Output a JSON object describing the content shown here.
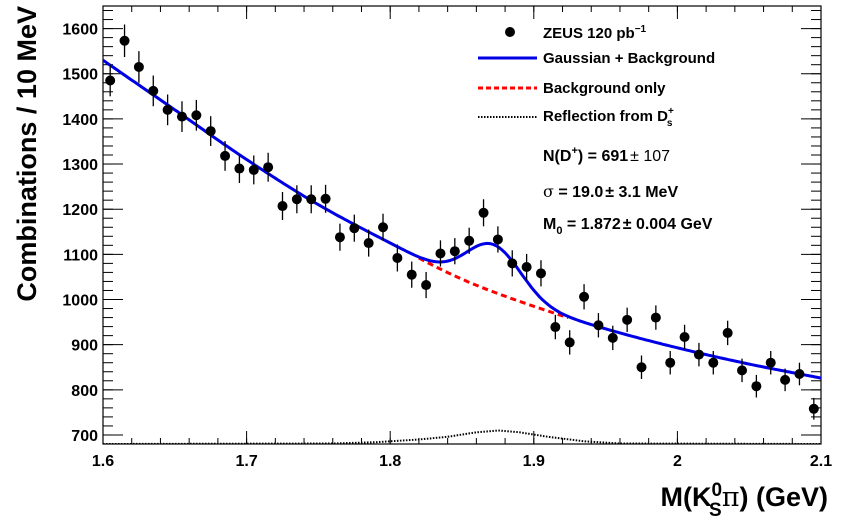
{
  "chart_data": {
    "type": "scatter",
    "xlabel_parts": {
      "main": "M(K",
      "sup": "0",
      "sub": "S",
      "pi": "π",
      "end": ") (GeV)"
    },
    "ylabel": "Combinations / 10 MeV",
    "xlim": [
      1.6,
      2.1
    ],
    "ylim": [
      680,
      1650
    ],
    "x_ticks": [
      "1.6",
      "1.7",
      "1.8",
      "1.9",
      "2",
      "2.1"
    ],
    "x_tick_values": [
      1.6,
      1.7,
      1.8,
      1.9,
      2.0,
      2.1
    ],
    "y_ticks": [
      "700",
      "800",
      "900",
      "1000",
      "1100",
      "1200",
      "1300",
      "1400",
      "1500",
      "1600"
    ],
    "y_tick_values": [
      700,
      800,
      900,
      1000,
      1100,
      1200,
      1300,
      1400,
      1500,
      1600
    ],
    "legend": {
      "data_label": "ZEUS 120 pb",
      "data_label_sup": "−1",
      "fit_label": "Gaussian + Background",
      "bkg_label": "Background only",
      "refl_label": "Reflection from D",
      "refl_sup": "+",
      "refl_sub": "s"
    },
    "results": {
      "n_text_a": "N(D",
      "n_sup": "+",
      "n_text_b": ") = 691",
      "n_err": "± 107",
      "sigma_sym": "σ",
      "sigma_text": " = 19.0",
      "sigma_err": "± 3.1 MeV",
      "m0_text": "M",
      "m0_sub": "0",
      "m0_val": " = 1.872",
      "m0_err": "± 0.004 GeV"
    },
    "colors": {
      "fit": "#0000e6",
      "background": "#ff0000",
      "reflection": "#000000",
      "data": "#000000"
    },
    "fit_params": {
      "background_x": [
        1.6,
        1.65,
        1.7,
        1.75,
        1.8,
        1.85,
        1.9,
        1.95,
        2.0,
        2.05,
        2.1
      ],
      "background_y": [
        1530,
        1420,
        1310,
        1210,
        1125,
        1045,
        985,
        935,
        893,
        857,
        826
      ],
      "gauss_amp": 105,
      "gauss_mean": 1.872,
      "gauss_sigma": 0.019,
      "background_only_range": [
        1.82,
        1.925
      ]
    },
    "reflection": {
      "x": [
        1.6,
        1.76,
        1.79,
        1.82,
        1.84,
        1.86,
        1.875,
        1.89,
        1.91,
        1.935,
        1.96,
        2.1
      ],
      "y": [
        680,
        681,
        684,
        690,
        696,
        706,
        710,
        706,
        696,
        686,
        681,
        680
      ]
    },
    "series": [
      {
        "name": "ZEUS 120 pb−1",
        "x": [
          1.605,
          1.615,
          1.625,
          1.635,
          1.645,
          1.655,
          1.665,
          1.675,
          1.685,
          1.695,
          1.705,
          1.715,
          1.725,
          1.735,
          1.745,
          1.755,
          1.765,
          1.775,
          1.785,
          1.795,
          1.805,
          1.815,
          1.825,
          1.835,
          1.845,
          1.855,
          1.865,
          1.875,
          1.885,
          1.895,
          1.905,
          1.915,
          1.925,
          1.935,
          1.945,
          1.955,
          1.965,
          1.975,
          1.985,
          1.995,
          2.005,
          2.015,
          2.025,
          2.035,
          2.045,
          2.055,
          2.065,
          2.075,
          2.085,
          2.095
        ],
        "y": [
          1485,
          1573,
          1515,
          1462,
          1420,
          1405,
          1408,
          1373,
          1318,
          1290,
          1287,
          1293,
          1207,
          1222,
          1222,
          1223,
          1138,
          1158,
          1125,
          1160,
          1092,
          1055,
          1032,
          1102,
          1107,
          1130,
          1192,
          1133,
          1080,
          1072,
          1058,
          939,
          905,
          1006,
          943,
          915,
          955,
          850,
          960,
          860,
          917,
          878,
          860,
          926,
          843,
          808,
          860,
          822,
          835,
          758
        ],
        "err": [
          35,
          36,
          35,
          34,
          34,
          34,
          34,
          33,
          33,
          32,
          32,
          32,
          31,
          31,
          31,
          31,
          30,
          30,
          30,
          30,
          30,
          29,
          29,
          29,
          29,
          29,
          30,
          29,
          29,
          29,
          29,
          27,
          27,
          28,
          27,
          27,
          27,
          26,
          27,
          26,
          27,
          26,
          26,
          27,
          26,
          25,
          26,
          25,
          25,
          24
        ]
      }
    ]
  }
}
